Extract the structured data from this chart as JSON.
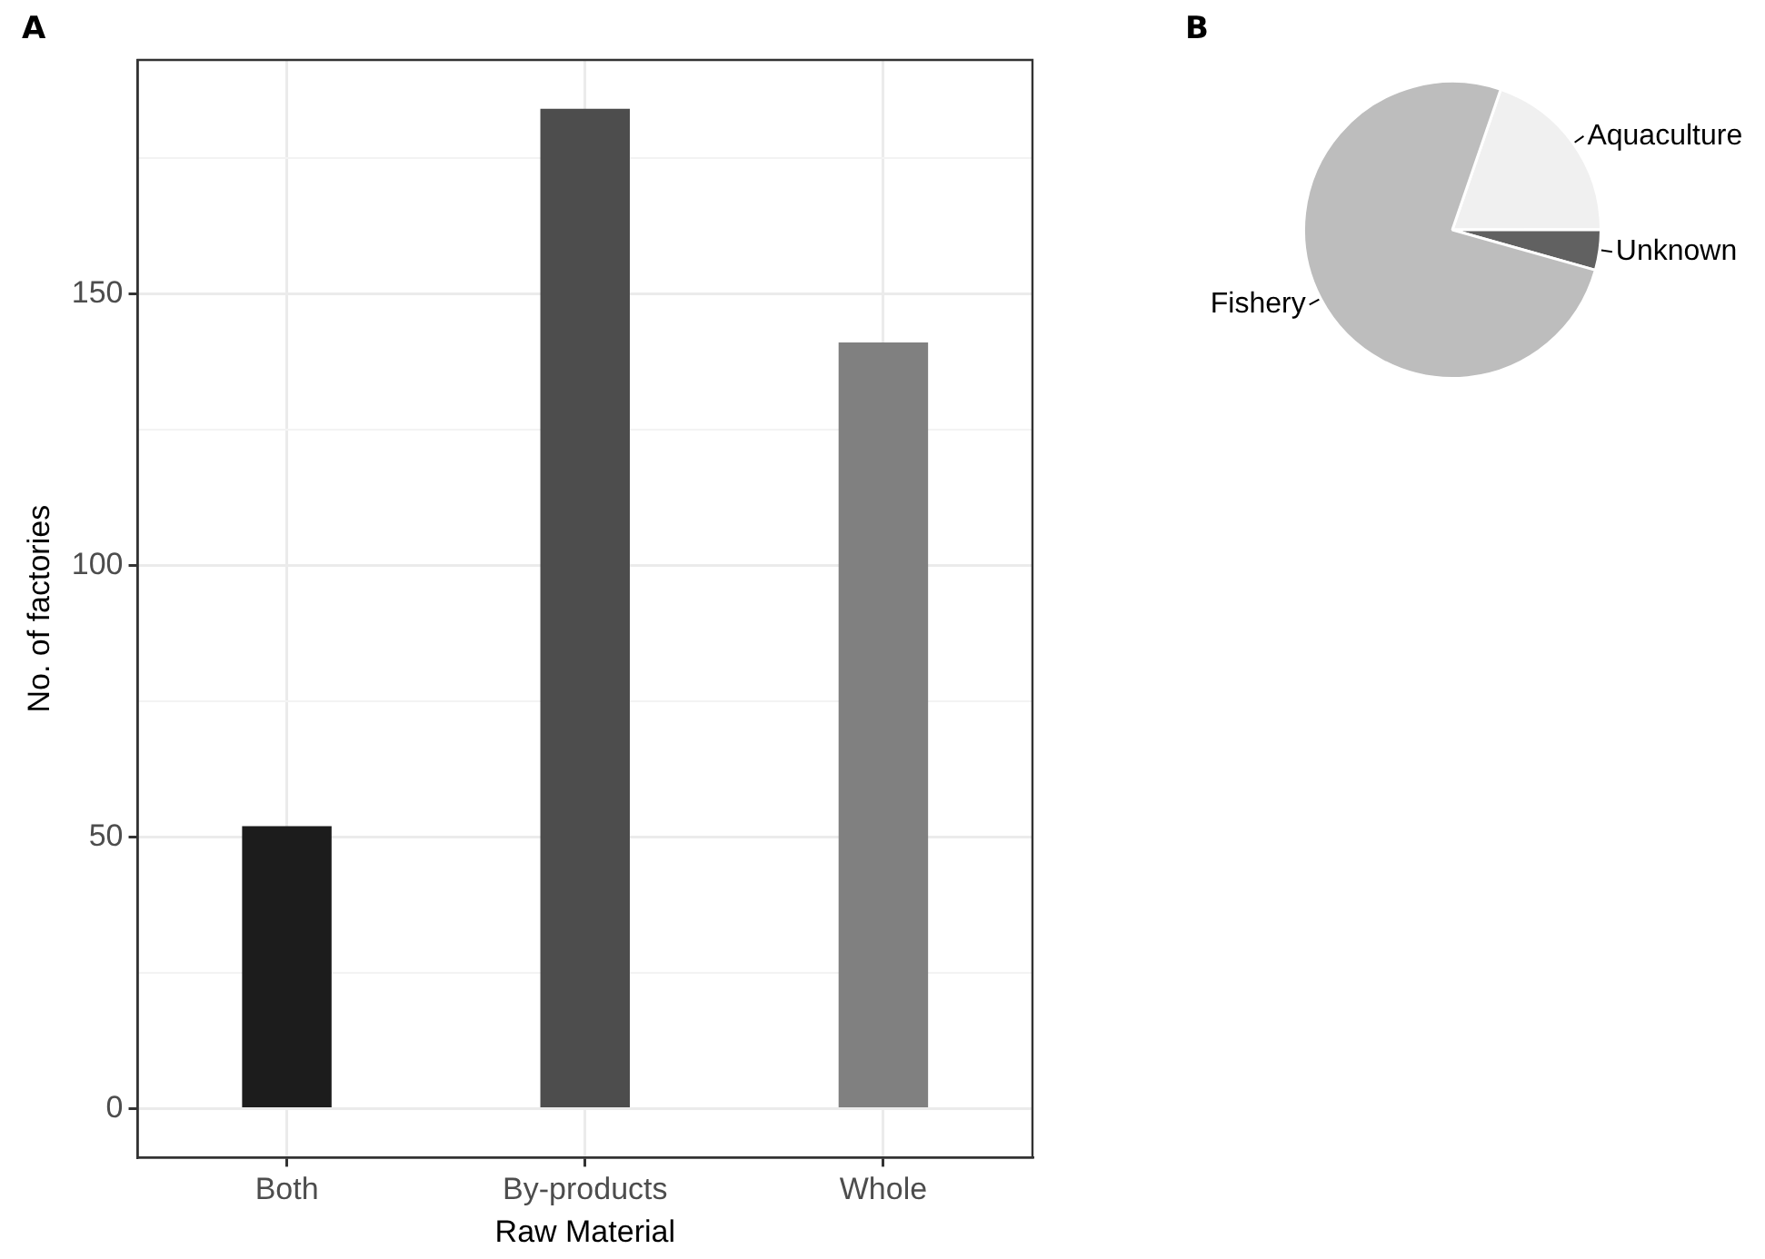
{
  "chart_data": [
    {
      "type": "bar",
      "title": "A",
      "xlabel": "Raw Material",
      "ylabel": "No. of factories",
      "categories": [
        "Both",
        "By-products",
        "Whole"
      ],
      "values": [
        52,
        184,
        141
      ],
      "colors": [
        "#1c1c1c",
        "#4d4d4d",
        "#808080"
      ],
      "ylim": [
        -9,
        193
      ],
      "yticks": [
        0,
        {
          "value": 25,
          "label": null
        },
        50,
        {
          "value": 75,
          "label": null
        },
        100,
        {
          "value": 125,
          "label": null
        },
        150,
        {
          "value": 175,
          "label": null
        }
      ],
      "grid": true,
      "legend": false
    },
    {
      "type": "pie",
      "title": "B",
      "categories": [
        "Aquaculture",
        "Unknown",
        "Fishery"
      ],
      "values": [
        19.7,
        4.4,
        75.9
      ],
      "colors": [
        "#f0f0f0",
        "#616161",
        "#bdbdbd"
      ],
      "legend": false
    }
  ]
}
